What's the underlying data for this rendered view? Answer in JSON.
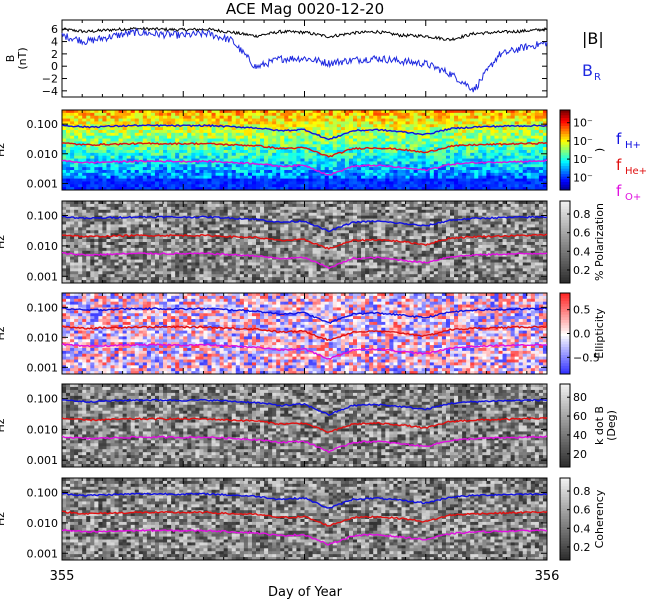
{
  "chart_data": {
    "type": "multi-panel",
    "title": "ACE Mag 0020-12-20",
    "xlabel": "Day of Year",
    "x_ticks": [
      "355",
      "356"
    ],
    "xlim": [
      355,
      356
    ],
    "colors": {
      "B_total": "#000000",
      "B_R": "#1f2ae0",
      "f_H": "#1010e0",
      "f_He": "#e01010",
      "f_O": "#e010e0"
    },
    "panels": [
      {
        "id": "mag",
        "type": "line",
        "ylabel": "B\n(nT)",
        "yticks": [
          "6",
          "4",
          "2",
          "0",
          "−2",
          "−4"
        ],
        "ylim": [
          -5,
          7.5
        ],
        "legend": [
          "|B|",
          "B_R"
        ],
        "series": [
          {
            "name": "|B|",
            "x": [
              355.0,
              355.05,
              355.1,
              355.15,
              355.2,
              355.25,
              355.3,
              355.35,
              355.4,
              355.45,
              355.5,
              355.55,
              355.6,
              355.65,
              355.7,
              355.75,
              355.8,
              355.85,
              355.9,
              355.95,
              356.0
            ],
            "y": [
              6.0,
              5.6,
              5.9,
              6.1,
              6.0,
              5.9,
              6.0,
              5.5,
              4.9,
              5.6,
              5.5,
              4.8,
              5.4,
              5.6,
              5.0,
              4.9,
              4.3,
              5.3,
              5.5,
              5.7,
              6.0
            ]
          },
          {
            "name": "B_R",
            "x": [
              355.0,
              355.05,
              355.1,
              355.15,
              355.2,
              355.25,
              355.3,
              355.35,
              355.4,
              355.45,
              355.5,
              355.55,
              355.6,
              355.65,
              355.7,
              355.75,
              355.8,
              355.85,
              355.9,
              355.95,
              356.0
            ],
            "y": [
              5.0,
              4.0,
              4.8,
              5.5,
              5.2,
              5.0,
              5.3,
              4.2,
              -0.2,
              1.2,
              1.3,
              0.5,
              1.0,
              1.3,
              0.8,
              0.4,
              -1.2,
              -3.8,
              1.8,
              3.0,
              3.8
            ]
          }
        ]
      },
      {
        "id": "power",
        "type": "heatmap",
        "ylabel": "Hz",
        "yticks": [
          "0.100",
          "0.010",
          "0.001"
        ],
        "colorbar_ticks": [
          "10⁻",
          "10⁻",
          "10⁻",
          "10⁻"
        ],
        "colorbar_label": ")",
        "legend": [
          "f_H+",
          "f_He+",
          "f_O+"
        ]
      },
      {
        "id": "polarization",
        "type": "heatmap",
        "ylabel": "Hz",
        "yticks": [
          "0.100",
          "0.010",
          "0.001"
        ],
        "colorbar_ticks": [
          "0.8",
          "0.6",
          "0.4",
          "0.2"
        ],
        "colorbar_label": "% Polarization"
      },
      {
        "id": "ellipticity",
        "type": "heatmap",
        "ylabel": "Hz",
        "yticks": [
          "0.100",
          "0.010",
          "0.001"
        ],
        "colorbar_ticks": [
          "0.5",
          "0.0",
          "−0.5"
        ],
        "colorbar_label": "Ellipticity"
      },
      {
        "id": "kdotb",
        "type": "heatmap",
        "ylabel": "Hz",
        "yticks": [
          "0.100",
          "0.010",
          "0.001"
        ],
        "colorbar_ticks": [
          "80",
          "60",
          "40",
          "20"
        ],
        "colorbar_label": "k dot B\n(Deg)"
      },
      {
        "id": "coherency",
        "type": "heatmap",
        "ylabel": "Hz",
        "yticks": [
          "0.100",
          "0.010",
          "0.001"
        ],
        "colorbar_ticks": [
          "0.8",
          "0.6",
          "0.4",
          "0.2"
        ],
        "colorbar_label": "Coherency"
      }
    ],
    "gyrofrequency_lines": {
      "x": [
        355.0,
        355.05,
        355.1,
        355.15,
        355.2,
        355.25,
        355.3,
        355.35,
        355.4,
        355.45,
        355.5,
        355.55,
        355.6,
        355.65,
        355.7,
        355.75,
        355.8,
        355.85,
        355.9,
        355.95,
        356.0
      ],
      "f_H+": [
        0.092,
        0.08,
        0.085,
        0.09,
        0.09,
        0.088,
        0.09,
        0.082,
        0.075,
        0.06,
        0.066,
        0.03,
        0.06,
        0.065,
        0.055,
        0.045,
        0.07,
        0.08,
        0.085,
        0.088,
        0.09
      ],
      "f_He+": [
        0.023,
        0.02,
        0.021,
        0.022,
        0.022,
        0.022,
        0.022,
        0.02,
        0.019,
        0.015,
        0.016,
        0.008,
        0.015,
        0.016,
        0.014,
        0.011,
        0.018,
        0.02,
        0.021,
        0.022,
        0.023
      ],
      "f_O+": [
        0.0058,
        0.005,
        0.0053,
        0.0056,
        0.0056,
        0.0055,
        0.0056,
        0.0051,
        0.0047,
        0.0038,
        0.0041,
        0.0019,
        0.0038,
        0.0041,
        0.0034,
        0.0028,
        0.0044,
        0.005,
        0.0053,
        0.0055,
        0.0058
      ]
    }
  }
}
